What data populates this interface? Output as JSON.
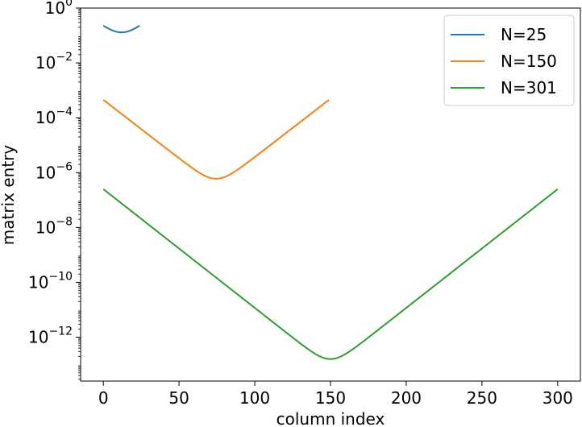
{
  "chart_data": {
    "type": "line",
    "title": "",
    "xlabel": "column index",
    "ylabel": "matrix entry",
    "xlim": [
      -15,
      315
    ],
    "ylim_exponents": [
      -13.6,
      0
    ],
    "yscale": "log",
    "grid": false,
    "legend_position": "top-right",
    "x_ticks": [
      {
        "value": 0,
        "label": "0"
      },
      {
        "value": 50,
        "label": "50"
      },
      {
        "value": 100,
        "label": "100"
      },
      {
        "value": 150,
        "label": "150"
      },
      {
        "value": 200,
        "label": "200"
      },
      {
        "value": 250,
        "label": "250"
      },
      {
        "value": 300,
        "label": "300"
      }
    ],
    "y_ticks": [
      {
        "exp": 0,
        "base": "10",
        "sup": "0"
      },
      {
        "exp": -2,
        "base": "10",
        "sup": "−2"
      },
      {
        "exp": -4,
        "base": "10",
        "sup": "−4"
      },
      {
        "exp": -6,
        "base": "10",
        "sup": "−6"
      },
      {
        "exp": -8,
        "base": "10",
        "sup": "−8"
      },
      {
        "exp": -10,
        "base": "10",
        "sup": "−10"
      },
      {
        "exp": -12,
        "base": "10",
        "sup": "−12"
      }
    ],
    "series": [
      {
        "name": "N=25",
        "color": "#1f77b4",
        "N": 25,
        "end_value": 0.23,
        "center_value": 0.13
      },
      {
        "name": "N=150",
        "color": "#ff7f0e",
        "N": 150,
        "end_value": 0.00045,
        "center_value": 6e-07
      },
      {
        "name": "N=301",
        "color": "#2ca02c",
        "N": 301,
        "end_value": 2.5e-07,
        "center_value": 1.6e-13
      }
    ]
  }
}
